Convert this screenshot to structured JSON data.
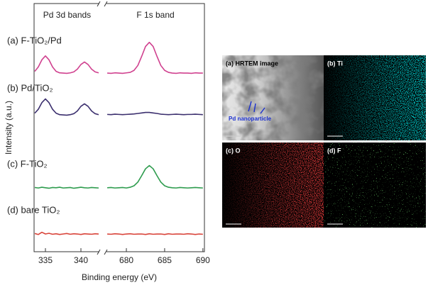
{
  "figure": {
    "y_label": "Intensity (a.u.)",
    "x_label": "Binding energy (eV)"
  },
  "chart_data": [
    {
      "type": "line",
      "title": "Pd 3d bands",
      "xlim": [
        333.4,
        342.7
      ],
      "ylim": [
        0,
        100
      ],
      "xticks": [
        335,
        340
      ],
      "x": [
        333.5,
        334,
        334.5,
        335,
        335.5,
        336,
        336.5,
        337,
        337.5,
        338,
        338.5,
        339,
        339.5,
        340,
        340.5,
        341,
        341.5,
        342,
        342.5
      ],
      "series": [
        {
          "name": "(a) F-TiO₂/Pd",
          "color": "#d0418f",
          "values": [
            73.3,
            75.1,
            78.0,
            79.6,
            78.0,
            75.1,
            73.3,
            72.7,
            72.6,
            72.5,
            72.7,
            73.1,
            74.2,
            76.1,
            77.1,
            76.1,
            74.2,
            73.1,
            72.7
          ]
        },
        {
          "name": "(b) Pd/TiO₂",
          "color": "#3b2f6e",
          "values": [
            56.3,
            57.9,
            60.6,
            62.1,
            60.6,
            57.9,
            56.3,
            55.7,
            55.6,
            55.5,
            55.7,
            56.1,
            57.2,
            59.1,
            60.1,
            59.1,
            57.2,
            56.1,
            55.7
          ]
        },
        {
          "name": "(c) F-TiO₂",
          "color": "#2e9c4e",
          "values": [
            26.1,
            25.9,
            26.2,
            26.0,
            25.8,
            26.1,
            26.0,
            26.2,
            25.9,
            26.0,
            26.1,
            25.8,
            26.0,
            26.2,
            26.0,
            25.9,
            26.1,
            26.0,
            25.9
          ]
        },
        {
          "name": "(d) bare TiO₂",
          "color": "#d9443a",
          "values": [
            7.4,
            7.0,
            7.9,
            7.2,
            7.5,
            7.1,
            7.3,
            7.0,
            7.2,
            7.4,
            7.1,
            7.3,
            7.2,
            7.0,
            7.3,
            7.2,
            7.1,
            7.3,
            7.2
          ]
        }
      ]
    },
    {
      "type": "line",
      "title": "F 1s band",
      "xlim": [
        677.4,
        690.2
      ],
      "ylim": [
        0,
        100
      ],
      "xticks": [
        680,
        685,
        690
      ],
      "x": [
        677.5,
        678,
        678.5,
        679,
        679.5,
        680,
        680.5,
        681,
        681.5,
        682,
        682.5,
        683,
        683.5,
        684,
        684.5,
        685,
        685.5,
        686,
        686.5,
        687,
        687.5,
        688,
        688.5,
        689,
        689.5,
        690
      ],
      "series": [
        {
          "color": "#d0418f",
          "values": [
            72.6,
            72.5,
            72.7,
            72.6,
            72.5,
            72.7,
            72.9,
            73.7,
            75.7,
            79.4,
            83.4,
            85.1,
            83.4,
            79.4,
            75.7,
            73.7,
            72.9,
            72.6,
            72.5,
            72.7,
            72.6,
            72.6,
            72.5,
            72.7,
            72.6,
            72.6
          ]
        },
        {
          "color": "#3b2f6e",
          "values": [
            55.8,
            55.7,
            55.9,
            55.8,
            55.7,
            55.8,
            55.9,
            56.0,
            56.2,
            56.4,
            56.6,
            56.6,
            56.4,
            56.2,
            55.9,
            55.8,
            55.7,
            55.8,
            55.9,
            55.8,
            55.7,
            55.8,
            55.8,
            55.9,
            55.8,
            55.7
          ]
        },
        {
          "color": "#2e9c4e",
          "values": [
            26.0,
            26.1,
            25.9,
            26.0,
            26.1,
            25.9,
            26.2,
            26.8,
            28.3,
            30.9,
            33.7,
            35.0,
            33.7,
            30.9,
            28.3,
            26.8,
            26.2,
            26.0,
            25.9,
            26.1,
            26.0,
            25.9,
            26.0,
            26.1,
            26.0,
            25.9
          ]
        },
        {
          "color": "#d9443a",
          "values": [
            7.2,
            7.1,
            7.3,
            7.2,
            7.0,
            7.2,
            7.3,
            7.1,
            7.2,
            7.2,
            7.0,
            7.3,
            7.1,
            7.2,
            7.2,
            7.0,
            7.3,
            7.1,
            7.2,
            7.2,
            7.1,
            7.3,
            7.2,
            7.0,
            7.2,
            7.1
          ]
        }
      ]
    }
  ],
  "images": {
    "panels": [
      {
        "label": "(a) HRTEM image"
      },
      {
        "label": "(b) Ti"
      },
      {
        "label": "(c) O"
      },
      {
        "label": "(d) F"
      }
    ],
    "annotation": "Pd nanoparticle"
  }
}
